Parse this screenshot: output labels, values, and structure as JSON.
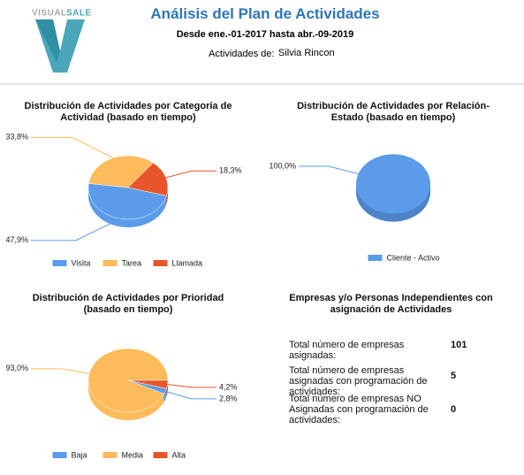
{
  "header": {
    "logo": [
      "VISUAL",
      "SALE"
    ],
    "title": "Análisis del Plan de Actividades",
    "subtitle": "Desde ene.-01-2017 hasta abr.-09-2019",
    "owner_label": "Actividades de:",
    "owner": "Silvia Rincon"
  },
  "chart_data": [
    {
      "type": "pie",
      "title": "Distribución de Actividades por Categoría de Actividad (basado en tiempo)",
      "categories": [
        "Visita",
        "Tarea",
        "Llamada"
      ],
      "values": [
        47.9,
        33.8,
        18.3
      ],
      "value_labels": [
        "47,9%",
        "33,8%",
        "18,3%"
      ],
      "colors": [
        "#5b9bea",
        "#fdbb5c",
        "#e8552b"
      ]
    },
    {
      "type": "pie",
      "title": "Distribución de Actividades por Relación-Estado (basado en tiempo)",
      "categories": [
        "Cliente - Activo"
      ],
      "values": [
        100.0
      ],
      "value_labels": [
        "100,0%"
      ],
      "colors": [
        "#5b9bea"
      ]
    },
    {
      "type": "pie",
      "title": "Distribución de Actividades por Prioridad (basado en tiempo)",
      "categories": [
        "Baja",
        "Media",
        "Alta"
      ],
      "values": [
        2.8,
        93.0,
        4.2
      ],
      "value_labels": [
        "2,8%",
        "93,0%",
        "4,2%"
      ],
      "colors": [
        "#5b9bea",
        "#fdbb5c",
        "#e8552b"
      ]
    }
  ],
  "summary": {
    "title": "Empresas y/o Personas Independientes con asignación de Actividades",
    "rows": [
      [
        "Total número de empresas asignadas:",
        101
      ],
      [
        "Total número de empresas asignadas con programación de actividades:",
        5
      ],
      [
        "Total número de empresas NO Asignadas con programación de actividades:",
        0
      ]
    ]
  }
}
